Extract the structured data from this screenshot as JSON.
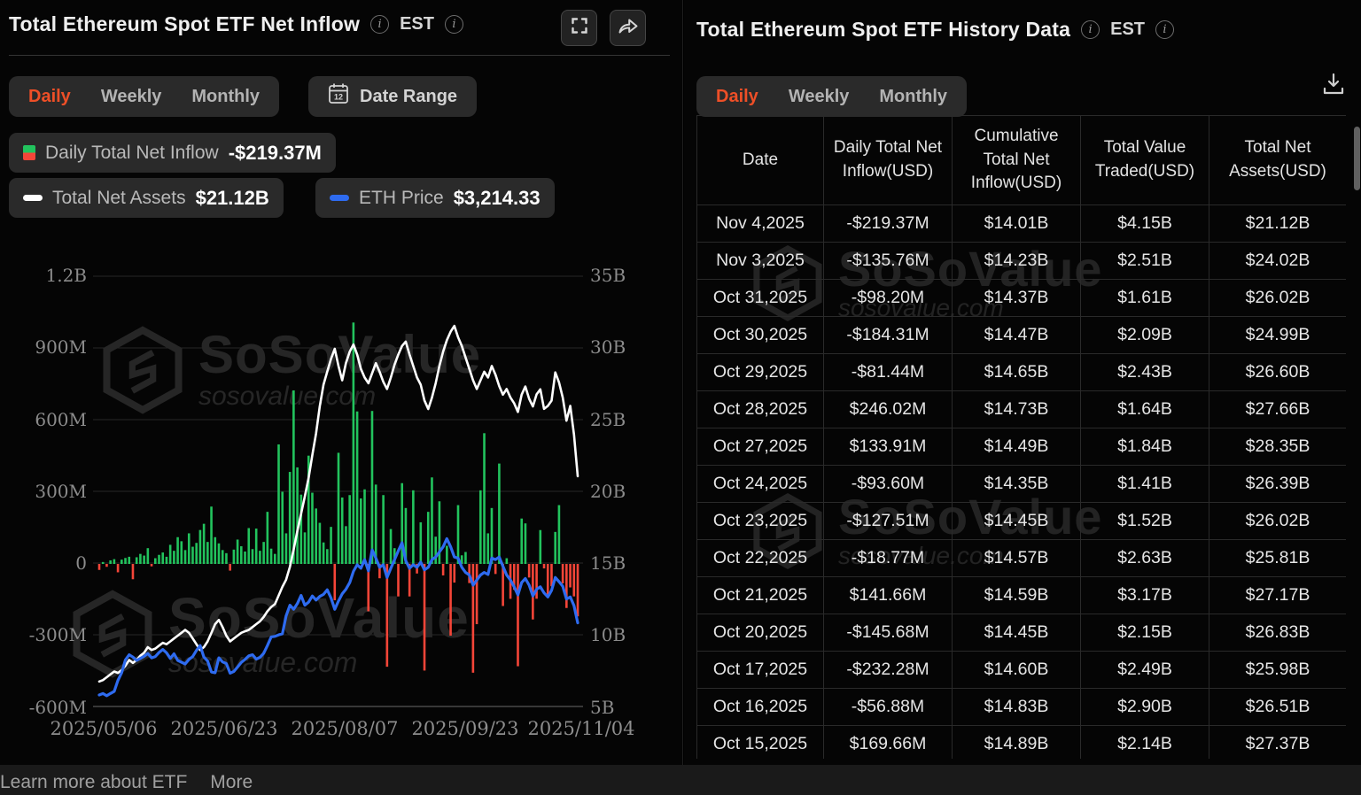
{
  "left_panel": {
    "title": "Total Ethereum Spot ETF Net Inflow",
    "timezone": "EST",
    "tabs": {
      "daily": "Daily",
      "weekly": "Weekly",
      "monthly": "Monthly",
      "active": "Daily"
    },
    "date_range_label": "Date Range",
    "legend": {
      "inflow": {
        "label": "Daily Total Net Inflow",
        "value": "-$219.37M"
      },
      "assets": {
        "label": "Total Net Assets",
        "value": "$21.12B"
      },
      "eth": {
        "label": "ETH Price",
        "value": "$3,214.33"
      }
    }
  },
  "watermark": {
    "brand": "SoSoValue",
    "domain": "sosovalue.com"
  },
  "chart_data": {
    "type": "combo-bar-line",
    "title": "Total Ethereum Spot ETF Net Inflow",
    "x_range": [
      "2025/05/06",
      "2025/11/04"
    ],
    "x_ticks": [
      "2025/05/06",
      "2025/06/23",
      "2025/08/07",
      "2025/09/23",
      "2025/11/04"
    ],
    "left_axis": {
      "unit": "USD",
      "min_m": -600,
      "max_m": 1200,
      "ticks": [
        "1.2B",
        "900M",
        "600M",
        "300M",
        "0",
        "-300M",
        "-600M"
      ]
    },
    "right_axis": {
      "unit": "USD",
      "min_b": 5,
      "max_b": 35,
      "ticks": [
        "35B",
        "30B",
        "25B",
        "20B",
        "15B",
        "10B",
        "5B"
      ]
    },
    "grid": true,
    "legend_position": "top",
    "series": [
      {
        "name": "Daily Total Net Inflow",
        "type": "bar",
        "axis": "left",
        "unit": "M USD",
        "color_positive": "#22c35d",
        "color_negative": "#f54538",
        "values": [
          -25,
          8,
          -12,
          15,
          20,
          -35,
          18,
          25,
          30,
          -64,
          28,
          42,
          35,
          66,
          -10,
          24,
          38,
          48,
          30,
          80,
          55,
          112,
          95,
          58,
          128,
          72,
          88,
          142,
          168,
          92,
          240,
          112,
          86,
          58,
          45,
          -28,
          60,
          102,
          74,
          52,
          150,
          62,
          148,
          55,
          92,
          218,
          64,
          42,
          500,
          302,
          128,
          385,
          726,
          404,
          290,
          132,
          453,
          298,
          232,
          172,
          90,
          62,
          155,
          -152,
          465,
          278,
          158,
          288,
          1010,
          638,
          274,
          312,
          -198,
          640,
          332,
          -60,
          288,
          -430,
          146,
          66,
          -136,
          338,
          234,
          -136,
          308,
          -40,
          174,
          -446,
          218,
          362,
          114,
          262,
          -48,
          76,
          -300,
          -78,
          246,
          36,
          50,
          -80,
          -455,
          -252,
          308,
          547,
          128,
          234,
          -42,
          420,
          -176,
          24,
          -146,
          -108,
          -428,
          190,
          169.66,
          -56.88,
          -232.28,
          -145.68,
          141.66,
          -18.77,
          -127.51,
          -93.6,
          133.91,
          246.02,
          -81.44,
          -184.31,
          -98.2,
          -135.76,
          -219.37
        ]
      },
      {
        "name": "Total Net Assets",
        "type": "line",
        "axis": "right",
        "unit": "B USD",
        "color": "#ffffff",
        "values": [
          6.8,
          6.9,
          7.1,
          7.3,
          7.5,
          7.4,
          7.6,
          7.9,
          8.3,
          8.1,
          8.3,
          8.6,
          8.8,
          9.2,
          9.0,
          9.1,
          9.3,
          9.5,
          9.4,
          9.6,
          9.8,
          10.0,
          10.2,
          10.4,
          10.2,
          9.8,
          9.4,
          9.0,
          9.2,
          9.6,
          10.2,
          10.8,
          11.1,
          10.6,
          10.0,
          9.6,
          9.8,
          10.0,
          10.2,
          10.3,
          10.4,
          10.6,
          10.8,
          11.0,
          11.3,
          11.7,
          12.0,
          12.2,
          12.8,
          13.4,
          13.9,
          14.8,
          16.0,
          17.3,
          18.5,
          19.7,
          21.0,
          22.6,
          24.1,
          26.0,
          27.5,
          28.4,
          29.3,
          30.0,
          28.8,
          27.8,
          29.0,
          29.8,
          30.3,
          29.6,
          28.6,
          28.0,
          27.6,
          28.3,
          29.0,
          28.4,
          27.7,
          27.2,
          28.0,
          28.9,
          29.6,
          30.2,
          30.5,
          29.6,
          28.8,
          28.0,
          27.5,
          26.4,
          25.8,
          26.6,
          27.6,
          28.8,
          29.8,
          30.6,
          31.2,
          31.6,
          30.8,
          30.2,
          29.4,
          28.6,
          27.8,
          27.2,
          27.8,
          28.4,
          28.0,
          28.8,
          28.2,
          27.4,
          26.8,
          27.2,
          26.6,
          26.2,
          25.6,
          26.8,
          27.37,
          26.51,
          25.98,
          26.83,
          27.17,
          25.81,
          26.02,
          26.39,
          28.35,
          27.66,
          26.6,
          24.99,
          26.02,
          24.02,
          21.12
        ]
      },
      {
        "name": "ETH Price",
        "type": "line",
        "axis": "hidden",
        "unit": "USD",
        "color": "#2e6bf0",
        "values": [
          1805,
          1832,
          1790,
          1835,
          1875,
          2090,
          2240,
          2490,
          2590,
          2545,
          2480,
          2520,
          2560,
          2615,
          2530,
          2555,
          2635,
          2695,
          2630,
          2520,
          2610,
          2480,
          2445,
          2410,
          2500,
          2555,
          2675,
          2770,
          2545,
          2470,
          2255,
          2240,
          2530,
          2450,
          2420,
          2230,
          2265,
          2350,
          2440,
          2500,
          2570,
          2590,
          2505,
          2540,
          2620,
          2770,
          2940,
          2950,
          2980,
          3000,
          3350,
          3560,
          3480,
          3590,
          3750,
          3560,
          3620,
          3740,
          3660,
          3730,
          3770,
          3860,
          3700,
          3480,
          3640,
          3780,
          3870,
          4000,
          4220,
          4350,
          4280,
          4450,
          4230,
          4640,
          4480,
          4300,
          4350,
          4100,
          4280,
          4450,
          4620,
          4780,
          4430,
          4280,
          4350,
          4300,
          4400,
          4250,
          4300,
          4450,
          4500,
          4600,
          4700,
          4860,
          4700,
          4500,
          4480,
          4300,
          4200,
          4150,
          3950,
          4050,
          4150,
          4200,
          4160,
          4480,
          4450,
          4500,
          4320,
          4150,
          4050,
          3920,
          3760,
          4000,
          4080,
          3950,
          3740,
          3870,
          3920,
          3800,
          3720,
          3850,
          4100,
          4020,
          3930,
          3680,
          3720,
          3550,
          3214
        ]
      }
    ]
  },
  "right_panel": {
    "title": "Total Ethereum Spot ETF History Data",
    "timezone": "EST",
    "tabs": {
      "daily": "Daily",
      "weekly": "Weekly",
      "monthly": "Monthly",
      "active": "Daily"
    },
    "table": {
      "columns": [
        "Date",
        "Daily Total Net Inflow(USD)",
        "Cumulative Total Net Inflow(USD)",
        "Total Value Traded(USD)",
        "Total Net Assets(USD)"
      ],
      "rows": [
        {
          "date": "Nov 4,2025",
          "daily_inflow": "-$219.37M",
          "cumulative_inflow": "$14.01B",
          "value_traded": "$4.15B",
          "net_assets": "$21.12B"
        },
        {
          "date": "Nov 3,2025",
          "daily_inflow": "-$135.76M",
          "cumulative_inflow": "$14.23B",
          "value_traded": "$2.51B",
          "net_assets": "$24.02B"
        },
        {
          "date": "Oct 31,2025",
          "daily_inflow": "-$98.20M",
          "cumulative_inflow": "$14.37B",
          "value_traded": "$1.61B",
          "net_assets": "$26.02B"
        },
        {
          "date": "Oct 30,2025",
          "daily_inflow": "-$184.31M",
          "cumulative_inflow": "$14.47B",
          "value_traded": "$2.09B",
          "net_assets": "$24.99B"
        },
        {
          "date": "Oct 29,2025",
          "daily_inflow": "-$81.44M",
          "cumulative_inflow": "$14.65B",
          "value_traded": "$2.43B",
          "net_assets": "$26.60B"
        },
        {
          "date": "Oct 28,2025",
          "daily_inflow": "$246.02M",
          "cumulative_inflow": "$14.73B",
          "value_traded": "$1.64B",
          "net_assets": "$27.66B"
        },
        {
          "date": "Oct 27,2025",
          "daily_inflow": "$133.91M",
          "cumulative_inflow": "$14.49B",
          "value_traded": "$1.84B",
          "net_assets": "$28.35B"
        },
        {
          "date": "Oct 24,2025",
          "daily_inflow": "-$93.60M",
          "cumulative_inflow": "$14.35B",
          "value_traded": "$1.41B",
          "net_assets": "$26.39B"
        },
        {
          "date": "Oct 23,2025",
          "daily_inflow": "-$127.51M",
          "cumulative_inflow": "$14.45B",
          "value_traded": "$1.52B",
          "net_assets": "$26.02B"
        },
        {
          "date": "Oct 22,2025",
          "daily_inflow": "-$18.77M",
          "cumulative_inflow": "$14.57B",
          "value_traded": "$2.63B",
          "net_assets": "$25.81B"
        },
        {
          "date": "Oct 21,2025",
          "daily_inflow": "$141.66M",
          "cumulative_inflow": "$14.59B",
          "value_traded": "$3.17B",
          "net_assets": "$27.17B"
        },
        {
          "date": "Oct 20,2025",
          "daily_inflow": "-$145.68M",
          "cumulative_inflow": "$14.45B",
          "value_traded": "$2.15B",
          "net_assets": "$26.83B"
        },
        {
          "date": "Oct 17,2025",
          "daily_inflow": "-$232.28M",
          "cumulative_inflow": "$14.60B",
          "value_traded": "$2.49B",
          "net_assets": "$25.98B"
        },
        {
          "date": "Oct 16,2025",
          "daily_inflow": "-$56.88M",
          "cumulative_inflow": "$14.83B",
          "value_traded": "$2.90B",
          "net_assets": "$26.51B"
        },
        {
          "date": "Oct 15,2025",
          "daily_inflow": "$169.66M",
          "cumulative_inflow": "$14.89B",
          "value_traded": "$2.14B",
          "net_assets": "$27.37B"
        }
      ]
    }
  },
  "footer": {
    "learn_more": "Learn more about ETF",
    "more": "More"
  },
  "colors": {
    "accent": "#ee4f27",
    "positive_text": "#2ebd64",
    "negative_text": "#f23c44",
    "bar_green": "#22c35d",
    "bar_red": "#f54538",
    "line_assets": "#ffffff",
    "line_eth": "#2e6bf0"
  }
}
